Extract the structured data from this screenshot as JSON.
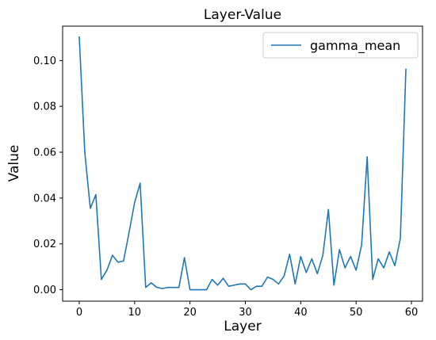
{
  "chart_data": {
    "type": "line",
    "title": "Layer-Value",
    "xlabel": "Layer",
    "ylabel": "Value",
    "xlim": [
      -3,
      62
    ],
    "ylim": [
      -0.005,
      0.115
    ],
    "xticks": [
      0,
      10,
      20,
      30,
      40,
      50,
      60
    ],
    "xtick_labels": [
      "0",
      "10",
      "20",
      "30",
      "40",
      "50",
      "60"
    ],
    "yticks": [
      0.0,
      0.02,
      0.04,
      0.06,
      0.08,
      0.1
    ],
    "ytick_labels": [
      "0.00",
      "0.02",
      "0.04",
      "0.06",
      "0.08",
      "0.10"
    ],
    "grid": false,
    "legend_position": "top-right",
    "series": [
      {
        "name": "gamma_mean",
        "color": "#1f77b4",
        "x": [
          0,
          1,
          2,
          3,
          4,
          5,
          6,
          7,
          8,
          9,
          10,
          11,
          12,
          13,
          14,
          15,
          16,
          17,
          18,
          19,
          20,
          21,
          22,
          23,
          24,
          25,
          26,
          27,
          28,
          29,
          30,
          31,
          32,
          33,
          34,
          35,
          36,
          37,
          38,
          39,
          40,
          41,
          42,
          43,
          44,
          45,
          46,
          47,
          48,
          49,
          50,
          51,
          52,
          53,
          54,
          55,
          56,
          57,
          58,
          59
        ],
        "values": [
          0.1105,
          0.06,
          0.0355,
          0.0415,
          0.0045,
          0.0085,
          0.015,
          0.012,
          0.0125,
          0.025,
          0.038,
          0.0465,
          0.001,
          0.003,
          0.001,
          0.0005,
          0.001,
          0.001,
          0.001,
          0.014,
          0.0,
          0.0,
          0.0,
          0.0,
          0.0045,
          0.002,
          0.005,
          0.0015,
          0.002,
          0.0025,
          0.0025,
          0.0,
          0.0015,
          0.0015,
          0.0055,
          0.0045,
          0.0025,
          0.006,
          0.0155,
          0.0025,
          0.0145,
          0.0075,
          0.0135,
          0.007,
          0.015,
          0.035,
          0.002,
          0.0175,
          0.0095,
          0.0145,
          0.0085,
          0.0195,
          0.058,
          0.0045,
          0.0135,
          0.0095,
          0.0165,
          0.0105,
          0.0225,
          0.0965
        ]
      }
    ]
  }
}
